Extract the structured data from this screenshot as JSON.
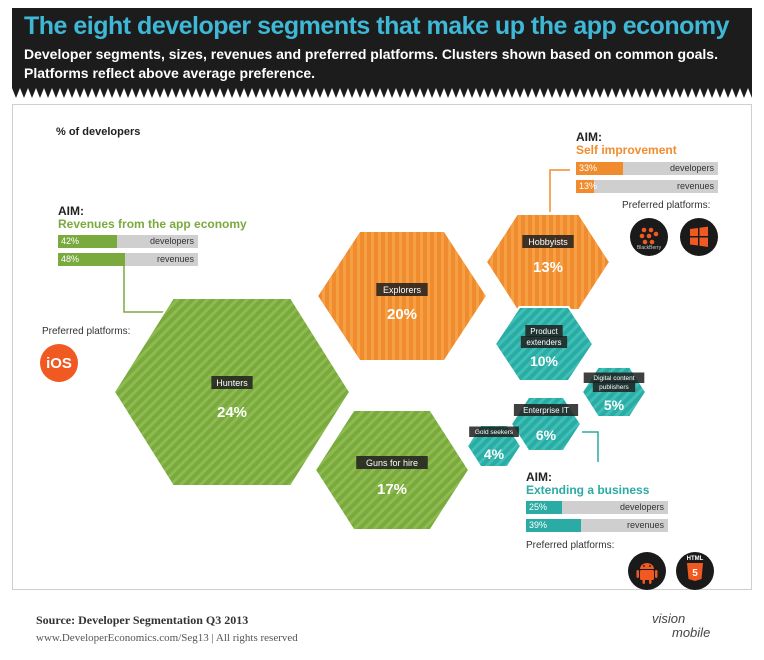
{
  "header": {
    "title": "The eight developer segments that make up the app economy",
    "subtitle_line1": "Developer segments, sizes, revenues and preferred platforms. Clusters shown based on common goals.",
    "subtitle_line2": "Platforms reflect above average preference."
  },
  "chart_data": {
    "type": "hexagon-bubble",
    "ylabel": "% of developers",
    "segments": [
      {
        "name": "Hunters",
        "value": 24,
        "label": "24%",
        "cluster": "revenues"
      },
      {
        "name": "Explorers",
        "value": 20,
        "label": "20%",
        "cluster": "self"
      },
      {
        "name": "Guns for hire",
        "value": 17,
        "label": "17%",
        "cluster": "revenues"
      },
      {
        "name": "Hobbyists",
        "value": 13,
        "label": "13%",
        "cluster": "self"
      },
      {
        "name": "Product extenders",
        "value": 10,
        "label": "10%",
        "cluster": "business"
      },
      {
        "name": "Enterprise IT",
        "value": 6,
        "label": "6%",
        "cluster": "business"
      },
      {
        "name": "Digital content publishers",
        "value": 5,
        "label": "5%",
        "cluster": "business"
      },
      {
        "name": "Gold seekers",
        "value": 4,
        "label": "4%",
        "cluster": "business"
      }
    ],
    "clusters": {
      "revenues": {
        "aim_label": "AIM:",
        "goal": "Revenues from the app economy",
        "color": "#7aaa3e",
        "developers": 42,
        "developers_label": "42%",
        "revenues": 48,
        "revenues_label": "48%",
        "platforms": [
          "iOS"
        ]
      },
      "self": {
        "aim_label": "AIM:",
        "goal": "Self improvement",
        "color": "#f08c2e",
        "developers": 33,
        "developers_label": "33%",
        "revenues": 13,
        "revenues_label": "13%",
        "platforms": [
          "BlackBerry",
          "Windows"
        ]
      },
      "business": {
        "aim_label": "AIM:",
        "goal": "Extending a business",
        "color": "#2aaba3",
        "developers": 25,
        "developers_label": "25%",
        "revenues": 39,
        "revenues_label": "39%",
        "platforms": [
          "Android",
          "HTML5"
        ]
      }
    },
    "bar_labels": {
      "developers": "developers",
      "revenues": "revenues"
    },
    "preferred_label": "Preferred platforms:",
    "platform_text": {
      "ios": "iOS",
      "blackberry": "BlackBerry",
      "html": "HTML"
    }
  },
  "footer": {
    "source": "Source: Developer Segmentation Q3 2013",
    "url": "www.DeveloperEconomics.com/Seg13 | All rights reserved",
    "logo_line1": "vision",
    "logo_line2": "mobile"
  }
}
